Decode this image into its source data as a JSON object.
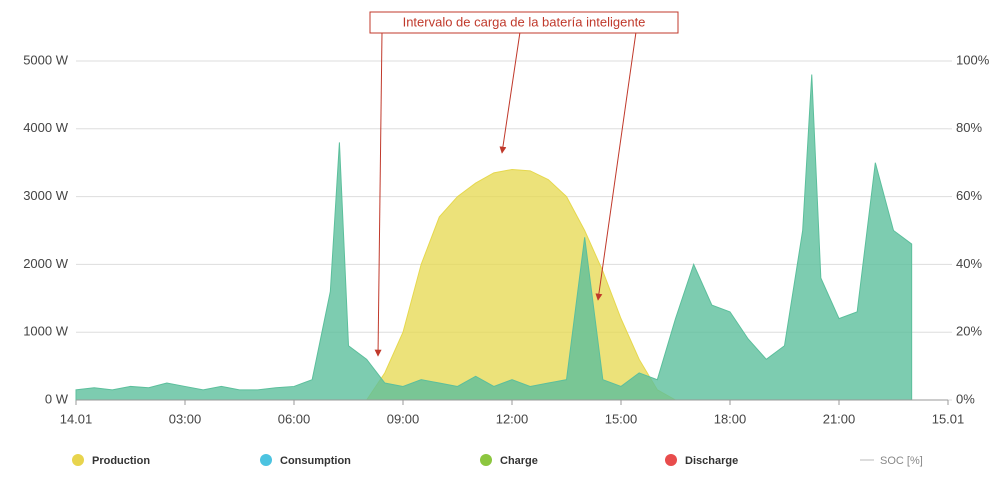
{
  "chart_data": {
    "type": "area",
    "annotation": "Intervalo de carga de la batería inteligente",
    "x": [
      0,
      0.5,
      1,
      1.5,
      2,
      2.5,
      3,
      3.5,
      4,
      4.5,
      5,
      5.5,
      6,
      6.5,
      7,
      7.25,
      7.5,
      8,
      8.5,
      9,
      9.5,
      10,
      10.5,
      11,
      11.5,
      12,
      12.5,
      13,
      13.5,
      14,
      14.5,
      15,
      15.5,
      16,
      16.5,
      17,
      17.5,
      18,
      18.5,
      19,
      19.5,
      20,
      20.25,
      20.5,
      21,
      21.5,
      22,
      22.5,
      23
    ],
    "series": [
      {
        "color": "#e6d84e",
        "values": [
          0,
          0,
          0,
          0,
          0,
          0,
          0,
          0,
          0,
          0,
          0,
          0,
          0,
          0,
          0,
          0,
          0,
          0,
          400,
          1000,
          2000,
          2700,
          3000,
          3200,
          3350,
          3400,
          3380,
          3250,
          3000,
          2500,
          1900,
          1200,
          600,
          150,
          0,
          0,
          0,
          0,
          0,
          0,
          0,
          0,
          0,
          0,
          0,
          0,
          0,
          0,
          0
        ]
      },
      {
        "color": "#5cbf9c",
        "values": [
          150,
          180,
          150,
          200,
          180,
          250,
          200,
          150,
          200,
          150,
          150,
          180,
          200,
          300,
          1600,
          3800,
          800,
          600,
          250,
          200,
          300,
          250,
          200,
          350,
          200,
          300,
          200,
          250,
          300,
          2400,
          300,
          200,
          400,
          300,
          1200,
          2000,
          1400,
          1300,
          900,
          600,
          800,
          2500,
          4800,
          1800,
          1200,
          1300,
          3500,
          2500,
          2300
        ]
      }
    ],
    "legend": [
      {
        "name": "Production",
        "color": "#e8d44d"
      },
      {
        "name": "Consumption",
        "color": "#4cc3e0"
      },
      {
        "name": "Charge",
        "color": "#8cc63f"
      },
      {
        "name": "Discharge",
        "color": "#e84c4c"
      },
      {
        "name": "SOC [%]",
        "color": "#dddddd"
      }
    ],
    "xlim": [
      0,
      24
    ],
    "xticks": [
      {
        "value": 0,
        "label": "14.01"
      },
      {
        "value": 3,
        "label": "03:00"
      },
      {
        "value": 6,
        "label": "06:00"
      },
      {
        "value": 9,
        "label": "09:00"
      },
      {
        "value": 12,
        "label": "12:00"
      },
      {
        "value": 15,
        "label": "15:00"
      },
      {
        "value": 18,
        "label": "18:00"
      },
      {
        "value": 21,
        "label": "21:00"
      },
      {
        "value": 24,
        "label": "15.01"
      }
    ],
    "ylim": [
      0,
      5000
    ],
    "yticks": [
      {
        "value": 0,
        "label": "0 W"
      },
      {
        "value": 1000,
        "label": "1000 W"
      },
      {
        "value": 2000,
        "label": "2000 W"
      },
      {
        "value": 3000,
        "label": "3000 W"
      },
      {
        "value": 4000,
        "label": "4000 W"
      },
      {
        "value": 5000,
        "label": "5000 W"
      }
    ],
    "y2lim": [
      0,
      100
    ],
    "y2ticks": [
      {
        "value": 0,
        "label": "0%"
      },
      {
        "value": 20,
        "label": "20%"
      },
      {
        "value": 40,
        "label": "40%"
      },
      {
        "value": 60,
        "label": "60%"
      },
      {
        "value": 80,
        "label": "80%"
      },
      {
        "value": 100,
        "label": "100%"
      }
    ],
    "grid": true
  }
}
